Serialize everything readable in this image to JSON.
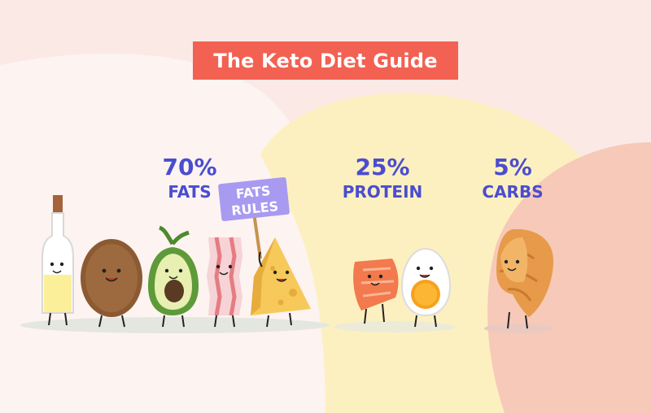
{
  "title": "The Keto Diet Guide",
  "macros": [
    {
      "percent": "70%",
      "label": "FATS"
    },
    {
      "percent": "25%",
      "label": "PROTEIN"
    },
    {
      "percent": "5%",
      "label": "CARBS"
    }
  ],
  "sign": {
    "line1": "FATS",
    "line2": "RULES"
  },
  "colors": {
    "title_bg": "#f26152",
    "macro_text": "#4a4dce",
    "background": "#fbe9e6",
    "protein_blob": "#fdf0c0",
    "carbs_blob": "#f7c9b8"
  },
  "characters": [
    "olive-oil-bottle",
    "coconut",
    "avocado",
    "bacon",
    "cheese",
    "salmon",
    "egg",
    "croissant"
  ]
}
